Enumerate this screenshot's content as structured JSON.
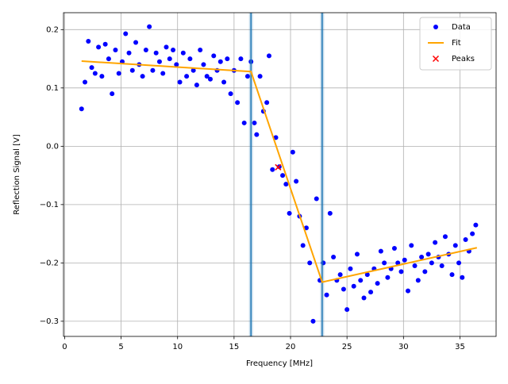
{
  "chart_data": {
    "type": "scatter",
    "xlabel": "Frequency [MHz]",
    "ylabel": "Reflection Signal [V]",
    "xlim": [
      -0.1,
      38.2
    ],
    "ylim": [
      -0.326,
      0.229
    ],
    "xticks": [
      0,
      5,
      10,
      15,
      20,
      25,
      30,
      35
    ],
    "yticks": [
      {
        "value": -0.3,
        "label": "−0.3"
      },
      {
        "value": -0.2,
        "label": "−0.2"
      },
      {
        "value": -0.1,
        "label": "−0.1"
      },
      {
        "value": 0,
        "label": "0.0"
      },
      0.1,
      0.2
    ],
    "grid": true,
    "legend": "upper right",
    "vlines": {
      "x": [
        16.5,
        22.8
      ],
      "color": "#1f77b4"
    },
    "series": [
      {
        "name": "Data",
        "type": "scatter",
        "marker": "o",
        "color": "#0000ff",
        "x": [
          1.5,
          1.8,
          2.1,
          2.4,
          2.7,
          3.0,
          3.3,
          3.6,
          3.9,
          4.2,
          4.5,
          4.8,
          5.1,
          5.4,
          5.7,
          6.0,
          6.3,
          6.6,
          6.9,
          7.2,
          7.5,
          7.8,
          8.1,
          8.4,
          8.7,
          9.0,
          9.3,
          9.6,
          9.9,
          10.2,
          10.5,
          10.8,
          11.1,
          11.4,
          11.7,
          12.0,
          12.3,
          12.6,
          12.9,
          13.2,
          13.5,
          13.8,
          14.1,
          14.4,
          14.7,
          15.0,
          15.3,
          15.6,
          15.9,
          16.2,
          16.5,
          16.8,
          17.0,
          17.3,
          17.6,
          17.9,
          18.1,
          18.4,
          18.7,
          19.0,
          19.3,
          19.6,
          19.9,
          20.2,
          20.5,
          20.8,
          21.1,
          21.4,
          21.7,
          22.0,
          22.3,
          22.6,
          22.9,
          23.2,
          23.5,
          23.8,
          24.1,
          24.4,
          24.7,
          25.0,
          25.3,
          25.6,
          25.9,
          26.2,
          26.5,
          26.8,
          27.1,
          27.4,
          27.7,
          28.0,
          28.3,
          28.6,
          28.9,
          29.2,
          29.5,
          29.8,
          30.1,
          30.4,
          30.7,
          31.0,
          31.3,
          31.6,
          31.9,
          32.2,
          32.5,
          32.8,
          33.1,
          33.4,
          33.7,
          34.0,
          34.3,
          34.6,
          34.9,
          35.2,
          35.5,
          35.8,
          36.1,
          36.4
        ],
        "y": [
          0.064,
          0.11,
          0.18,
          0.135,
          0.125,
          0.17,
          0.12,
          0.175,
          0.15,
          0.09,
          0.165,
          0.125,
          0.145,
          0.193,
          0.16,
          0.13,
          0.178,
          0.14,
          0.12,
          0.165,
          0.205,
          0.13,
          0.16,
          0.145,
          0.125,
          0.17,
          0.15,
          0.165,
          0.14,
          0.11,
          0.16,
          0.12,
          0.15,
          0.13,
          0.105,
          0.165,
          0.14,
          0.12,
          0.115,
          0.155,
          0.13,
          0.145,
          0.11,
          0.15,
          0.09,
          0.13,
          0.075,
          0.15,
          0.04,
          0.12,
          0.145,
          0.04,
          0.02,
          0.12,
          0.06,
          0.075,
          0.155,
          -0.04,
          0.015,
          -0.035,
          -0.05,
          -0.065,
          -0.115,
          -0.01,
          -0.06,
          -0.12,
          -0.17,
          -0.14,
          -0.2,
          -0.3,
          -0.09,
          -0.23,
          -0.2,
          -0.255,
          -0.115,
          -0.19,
          -0.23,
          -0.22,
          -0.245,
          -0.28,
          -0.21,
          -0.24,
          -0.185,
          -0.23,
          -0.26,
          -0.22,
          -0.25,
          -0.21,
          -0.235,
          -0.18,
          -0.2,
          -0.225,
          -0.21,
          -0.175,
          -0.2,
          -0.215,
          -0.195,
          -0.248,
          -0.17,
          -0.205,
          -0.23,
          -0.19,
          -0.215,
          -0.185,
          -0.2,
          -0.165,
          -0.19,
          -0.205,
          -0.155,
          -0.185,
          -0.22,
          -0.17,
          -0.2,
          -0.225,
          -0.16,
          -0.18,
          -0.15,
          -0.135
        ]
      },
      {
        "name": "Fit",
        "type": "line",
        "color": "#ffa500",
        "x": [
          1.5,
          16.5,
          22.8,
          36.5
        ],
        "y": [
          0.146,
          0.128,
          -0.233,
          -0.174
        ]
      },
      {
        "name": "Peaks",
        "type": "scatter",
        "marker": "x",
        "color": "#ff0000",
        "x": [
          18.9
        ],
        "y": [
          -0.036
        ]
      }
    ]
  }
}
